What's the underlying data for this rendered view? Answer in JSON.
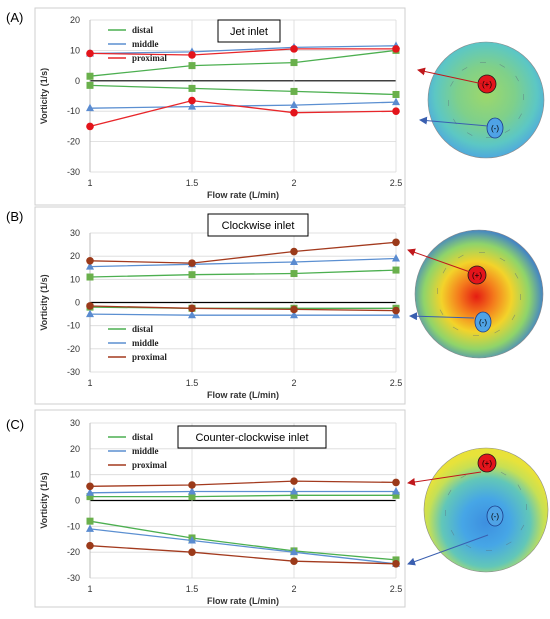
{
  "panels": [
    {
      "label": "(A)",
      "title": "Jet inlet",
      "disk_labels": {
        "positive": "(+)",
        "negative": "(-)"
      }
    },
    {
      "label": "(B)",
      "title": "Clockwise inlet",
      "disk_labels": {
        "positive": "(+)",
        "negative": "(-)"
      }
    },
    {
      "label": "(C)",
      "title": "Counter-clockwise inlet",
      "disk_labels": {
        "positive": "(+)",
        "negative": "(-)"
      }
    }
  ],
  "colors": {
    "distal": "#4caf50",
    "middle": "#5b8fd1",
    "proximal_a": "#e8262a",
    "proximal_bc": "#a33a1e",
    "marker_square": "#6ab04c",
    "marker_triangle": "#5a8bd0",
    "marker_circle_a": "#e3141b",
    "marker_circle_c": "#9b3a1a",
    "zero_line": "#000000",
    "grid": "#d9d9d9"
  },
  "chart_data": [
    {
      "type": "line",
      "title": "Jet inlet",
      "xlabel": "Flow rate (L/min)",
      "ylabel": "Vorticity (1/s)",
      "x": [
        1,
        1.5,
        2,
        2.5
      ],
      "x_ticks": [
        "1",
        "1.5",
        "2",
        "2.5"
      ],
      "ylim": [
        -30,
        20
      ],
      "y_ticks": [
        "20",
        "10",
        "0",
        "-10",
        "-20",
        "-30"
      ],
      "grid": true,
      "legend": [
        "distal",
        "middle",
        "proximal"
      ],
      "legend_position": "top-left",
      "series": [
        {
          "name": "distal",
          "values": [
            1.5,
            5,
            6,
            10
          ],
          "marker": "square"
        },
        {
          "name": "middle",
          "values": [
            9,
            9.5,
            11,
            11.5
          ],
          "marker": "triangle"
        },
        {
          "name": "proximal",
          "values": [
            9,
            8.5,
            10.5,
            10.5
          ],
          "marker": "circle"
        },
        {
          "name": "distal",
          "values": [
            -1.5,
            -2.5,
            -3.5,
            -4.5
          ],
          "marker": "square"
        },
        {
          "name": "middle",
          "values": [
            -9,
            -8.5,
            -8,
            -7
          ],
          "marker": "triangle"
        },
        {
          "name": "proximal",
          "values": [
            -15,
            -6.5,
            -10.5,
            -10
          ],
          "marker": "circle"
        }
      ]
    },
    {
      "type": "line",
      "title": "Clockwise inlet",
      "xlabel": "Flow rate (L/min)",
      "ylabel": "Vorticity (1/s)",
      "x": [
        1,
        1.5,
        2,
        2.5
      ],
      "x_ticks": [
        "1",
        "1.5",
        "2",
        "2.5"
      ],
      "ylim": [
        -30,
        30
      ],
      "y_ticks": [
        "30",
        "20",
        "10",
        "0",
        "-10",
        "-20",
        "-30"
      ],
      "grid": true,
      "legend": [
        "distal",
        "middle",
        "proximal"
      ],
      "legend_position": "bottom-left",
      "series": [
        {
          "name": "distal",
          "values": [
            11,
            12,
            12.5,
            14
          ],
          "marker": "square"
        },
        {
          "name": "middle",
          "values": [
            15.5,
            16.5,
            17.5,
            19
          ],
          "marker": "triangle"
        },
        {
          "name": "proximal",
          "values": [
            18,
            17,
            22,
            26
          ],
          "marker": "circle"
        },
        {
          "name": "distal",
          "values": [
            -2,
            -2.5,
            -2.5,
            -2.5
          ],
          "marker": "square"
        },
        {
          "name": "middle",
          "values": [
            -5,
            -5.5,
            -5.5,
            -5.5
          ],
          "marker": "triangle"
        },
        {
          "name": "proximal",
          "values": [
            -1.5,
            -2.5,
            -3,
            -3.5
          ],
          "marker": "circle"
        }
      ]
    },
    {
      "type": "line",
      "title": "Counter-clockwise inlet",
      "xlabel": "Flow rate (L/min)",
      "ylabel": "Vorticity (1/s)",
      "x": [
        1,
        1.5,
        2,
        2.5
      ],
      "x_ticks": [
        "1",
        "1.5",
        "2",
        "2.5"
      ],
      "ylim": [
        -30,
        30
      ],
      "y_ticks": [
        "30",
        "20",
        "10",
        "0",
        "-10",
        "-20",
        "-30"
      ],
      "grid": true,
      "legend": [
        "distal",
        "middle",
        "proximal"
      ],
      "legend_position": "top-left",
      "series": [
        {
          "name": "distal",
          "values": [
            1.5,
            1.5,
            2,
            2
          ],
          "marker": "square"
        },
        {
          "name": "middle",
          "values": [
            3,
            3.5,
            3.5,
            3.5
          ],
          "marker": "triangle"
        },
        {
          "name": "proximal",
          "values": [
            5.5,
            6,
            7.5,
            7
          ],
          "marker": "circle"
        },
        {
          "name": "distal",
          "values": [
            -8,
            -14.5,
            -19.5,
            -23
          ],
          "marker": "square"
        },
        {
          "name": "middle",
          "values": [
            -11,
            -15.5,
            -20,
            -24.5
          ],
          "marker": "triangle"
        },
        {
          "name": "proximal",
          "values": [
            -17.5,
            -20,
            -23.5,
            -24.5
          ],
          "marker": "circle"
        }
      ]
    }
  ]
}
